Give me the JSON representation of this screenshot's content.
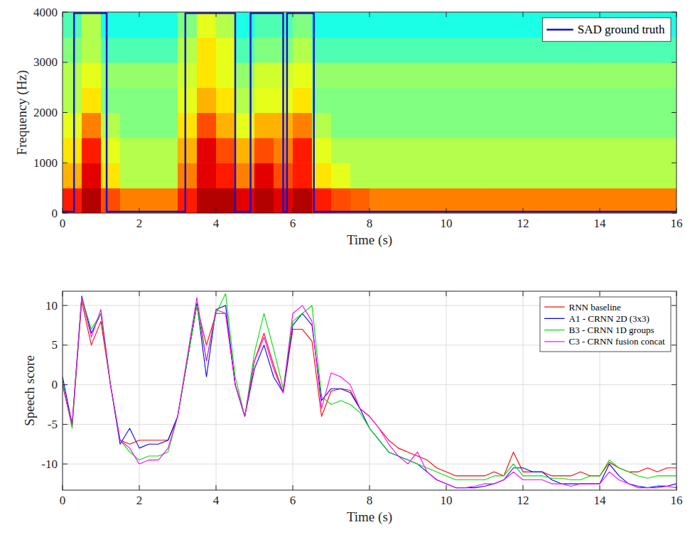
{
  "chart_data": [
    {
      "type": "heatmap",
      "xlabel": "Time (s)",
      "ylabel": "Frequency (Hz)",
      "xlim": [
        0,
        16
      ],
      "xticks": [
        0,
        2,
        4,
        6,
        8,
        10,
        12,
        14,
        16
      ],
      "ylim": [
        0,
        4000
      ],
      "yticks": [
        0,
        1000,
        2000,
        3000,
        4000
      ],
      "grid": false,
      "legend": "upper right",
      "x_bins": [
        0,
        0.5,
        1,
        1.5,
        2,
        2.5,
        3,
        3.5,
        4,
        4.5,
        5,
        5.5,
        6,
        6.5,
        7,
        7.5,
        8,
        8.5,
        9,
        9.5,
        10,
        10.5,
        11,
        11.5,
        12,
        12.5,
        13,
        13.5,
        14,
        14.5,
        15,
        15.5,
        16
      ],
      "y_bins": [
        0,
        500,
        1000,
        1500,
        2000,
        2500,
        3000,
        3500,
        4000
      ],
      "clim": [
        0,
        10
      ],
      "cells": [
        [
          8.5,
          9.5,
          8,
          7.5,
          7.5,
          7.5,
          8.5,
          9.5,
          9.5,
          9,
          9.5,
          9,
          9.5,
          8.5,
          8,
          7.8,
          7.5,
          7.5,
          7.5,
          7.5,
          7.5,
          7.5,
          7.5,
          7.5,
          7.5,
          7.5,
          7.5,
          7.5,
          7.5,
          7.5,
          7.5,
          7.5
        ],
        [
          7,
          9,
          6.5,
          5.5,
          5.5,
          5.5,
          7.5,
          9,
          8.5,
          7.5,
          9,
          8,
          8.5,
          6.5,
          6,
          5.5,
          5.5,
          5.5,
          5.5,
          5.5,
          5.5,
          5.5,
          5.5,
          5.5,
          5.5,
          5.5,
          5.5,
          5.5,
          5.5,
          5.5,
          5.5,
          5.5
        ],
        [
          6.5,
          8.5,
          6,
          5.5,
          5.5,
          5.5,
          7,
          9,
          8,
          7,
          8,
          7.5,
          8.5,
          6,
          5.5,
          5.5,
          5.5,
          5.5,
          5.5,
          5.5,
          5.5,
          5.5,
          5.5,
          5.5,
          5.5,
          5.5,
          5.5,
          5.5,
          5.5,
          5.5,
          5.5,
          5.5
        ],
        [
          6,
          7.5,
          5.5,
          5,
          5,
          5,
          6.5,
          8,
          7,
          6,
          7,
          7,
          7.5,
          5.5,
          5,
          5,
          5,
          5,
          5,
          5,
          5,
          5,
          5,
          5,
          5,
          5,
          5,
          5,
          5,
          5,
          5,
          5
        ],
        [
          5.5,
          6.5,
          5,
          5,
          5,
          5,
          6,
          7,
          6.5,
          5.5,
          6,
          6,
          6.5,
          5,
          5,
          5,
          5,
          5,
          5,
          5,
          5,
          5,
          5,
          5,
          5,
          5,
          5,
          5,
          5,
          5,
          5,
          5
        ],
        [
          5.5,
          6,
          5.2,
          5.2,
          5.2,
          5.2,
          5.8,
          6.5,
          6,
          5.2,
          5.8,
          5.8,
          6,
          5.2,
          5.2,
          5.2,
          5.2,
          5.2,
          5.2,
          5.2,
          5.2,
          5.2,
          5.2,
          5.2,
          5.2,
          5.2,
          5.2,
          5.2,
          5.2,
          5.2,
          5.2,
          5.2
        ],
        [
          5,
          5.5,
          4.5,
          4.5,
          4.5,
          4.5,
          5.5,
          6.5,
          6,
          4.5,
          5,
          5,
          5.5,
          4.5,
          4.5,
          4.5,
          4.5,
          4.5,
          4.5,
          4.5,
          4.5,
          4.5,
          4.5,
          4.5,
          4.5,
          4.5,
          4.5,
          4.5,
          4.5,
          4.5,
          4.5,
          4.5
        ],
        [
          4.5,
          5.5,
          4,
          4,
          4,
          4,
          5,
          6,
          5.5,
          4,
          4.5,
          4.5,
          5,
          4,
          4,
          4,
          4,
          4,
          4,
          4,
          4,
          4,
          4,
          4,
          4,
          4,
          4,
          4,
          4,
          4,
          4,
          4
        ]
      ],
      "series": [
        {
          "name": "SAD ground truth",
          "color": "#1414c8",
          "type": "line",
          "x": [
            0,
            0.3,
            0.3,
            1.15,
            1.15,
            3.2,
            3.2,
            4.5,
            4.5,
            4.9,
            4.9,
            5.75,
            5.75,
            5.85,
            5.85,
            6.55,
            6.55,
            16
          ],
          "values": [
            30,
            30,
            3980,
            3980,
            30,
            30,
            3980,
            3980,
            30,
            30,
            3980,
            3980,
            30,
            30,
            3980,
            3980,
            30,
            30
          ]
        }
      ]
    },
    {
      "type": "line",
      "xlabel": "Time (s)",
      "ylabel": "Speech score",
      "xlim": [
        0,
        16
      ],
      "xticks": [
        0,
        2,
        4,
        6,
        8,
        10,
        12,
        14,
        16
      ],
      "ylim": [
        -13.3,
        11.8
      ],
      "yticks": [
        -10,
        -5,
        0,
        5,
        10
      ],
      "grid": true,
      "legend": "upper right",
      "x": [
        0,
        0.25,
        0.5,
        0.75,
        1,
        1.25,
        1.5,
        1.75,
        2,
        2.25,
        2.5,
        2.75,
        3,
        3.25,
        3.5,
        3.75,
        4,
        4.25,
        4.5,
        4.75,
        5,
        5.25,
        5.5,
        5.75,
        6,
        6.25,
        6.5,
        6.75,
        7,
        7.25,
        7.5,
        7.75,
        8,
        8.25,
        8.5,
        8.75,
        9,
        9.25,
        9.5,
        9.75,
        10,
        10.25,
        10.5,
        10.75,
        11,
        11.25,
        11.5,
        11.75,
        12,
        12.25,
        12.5,
        12.75,
        13,
        13.25,
        13.5,
        13.75,
        14,
        14.25,
        14.5,
        14.75,
        15,
        15.25,
        15.5,
        15.75,
        16
      ],
      "series": [
        {
          "name": "RNN baseline",
          "color": "#ff0000",
          "values": [
            0,
            -5.3,
            10.5,
            5,
            8,
            0,
            -7,
            -7.5,
            -7,
            -7,
            -7,
            -7,
            -4,
            3,
            10,
            5,
            9,
            9,
            0,
            -4,
            3,
            6.5,
            2.5,
            -1,
            7,
            7,
            5.5,
            -4,
            -0.8,
            -0.5,
            -0.7,
            -3,
            -4,
            -5.5,
            -7,
            -8,
            -8.5,
            -9,
            -9.5,
            -10.5,
            -11,
            -11.5,
            -11.5,
            -11.5,
            -11.5,
            -11,
            -11.5,
            -8.5,
            -11,
            -11,
            -11,
            -11.5,
            -11.5,
            -11.5,
            -11,
            -11.5,
            -11.5,
            -9.8,
            -10.5,
            -11,
            -11,
            -10.5,
            -11,
            -10.5,
            -10.5
          ]
        },
        {
          "name": "A1 - CRNN 2D (3x3)",
          "color": "#0000ff",
          "values": [
            1,
            -5,
            11.2,
            6.5,
            9,
            0,
            -7.5,
            -5.5,
            -8,
            -7.5,
            -7.5,
            -7,
            -4,
            3,
            10.3,
            1,
            9.5,
            10,
            0,
            -4,
            2,
            5,
            1,
            -1,
            7.5,
            9,
            7.5,
            -2,
            -0.5,
            -0.5,
            -1,
            -3,
            -5.5,
            -7,
            -8.5,
            -9,
            -9.5,
            -10,
            -11,
            -12,
            -12.5,
            -13,
            -13,
            -13,
            -12.8,
            -12.5,
            -12,
            -10.5,
            -10.5,
            -11,
            -11,
            -12,
            -12.5,
            -12.5,
            -12.5,
            -12.5,
            -12.5,
            -10,
            -11.5,
            -12.5,
            -12.8,
            -13,
            -12.8,
            -12.8,
            -12.5
          ]
        },
        {
          "name": "B3 - CRNN 1D groups",
          "color": "#00e000",
          "values": [
            0.5,
            -5.5,
            11,
            7,
            9,
            0,
            -7,
            -8.5,
            -9.5,
            -9,
            -9,
            -8.5,
            -4,
            3,
            10,
            3,
            9,
            11.5,
            1,
            -4,
            4,
            9,
            4.5,
            -0.5,
            8,
            9,
            10,
            -1.5,
            -2.5,
            -2,
            -2.5,
            -3.5,
            -5.5,
            -7,
            -8.5,
            -9,
            -9.5,
            -10,
            -10.5,
            -11,
            -11.5,
            -12,
            -12,
            -12,
            -12,
            -11.5,
            -11.5,
            -10,
            -11.5,
            -11.5,
            -11.5,
            -11.8,
            -11.8,
            -12,
            -12,
            -11.5,
            -11.5,
            -9.5,
            -10.5,
            -11,
            -11.5,
            -11.8,
            -11.5,
            -11.5,
            -11.5
          ]
        },
        {
          "name": "C3 - CRNN fusion concat",
          "color": "#ff00ff",
          "values": [
            0,
            -5,
            11,
            6,
            9.5,
            0,
            -7,
            -8,
            -10,
            -9.5,
            -9.5,
            -8,
            -4,
            3.5,
            11,
            3,
            9.5,
            9,
            0,
            -4,
            3,
            6,
            2,
            -1,
            9,
            10,
            8,
            -3,
            1.5,
            1,
            0,
            -3,
            -4,
            -5.5,
            -7.5,
            -9,
            -10,
            -8.5,
            -11,
            -12,
            -12.5,
            -13,
            -13,
            -12.8,
            -12.5,
            -12.5,
            -12,
            -11,
            -12,
            -12,
            -12,
            -12.5,
            -12.5,
            -12.8,
            -12.5,
            -12.5,
            -12.5,
            -11,
            -12,
            -12.5,
            -13,
            -13,
            -13,
            -12.8,
            -13
          ]
        }
      ]
    }
  ]
}
